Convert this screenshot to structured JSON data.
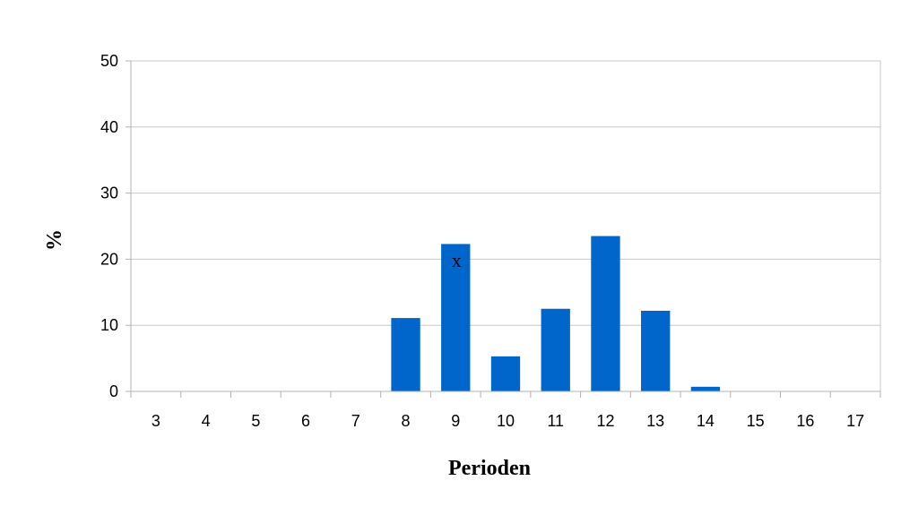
{
  "chart_data": {
    "type": "bar",
    "categories": [
      "3",
      "4",
      "5",
      "6",
      "7",
      "8",
      "9",
      "10",
      "11",
      "12",
      "13",
      "14",
      "15",
      "16",
      "17"
    ],
    "values": [
      0,
      0,
      0,
      0,
      0,
      11.1,
      22.3,
      5.3,
      12.5,
      23.5,
      12.2,
      0.7,
      0,
      0,
      0
    ],
    "xlabel": "Perioden",
    "ylabel": "%",
    "ylim": [
      0,
      50
    ],
    "yticks": [
      0,
      10,
      20,
      30,
      40,
      50
    ],
    "grid": true,
    "bar_color": "#0066cc",
    "annotations": [
      {
        "text": "x",
        "category": "9",
        "value": 19.8
      }
    ]
  }
}
